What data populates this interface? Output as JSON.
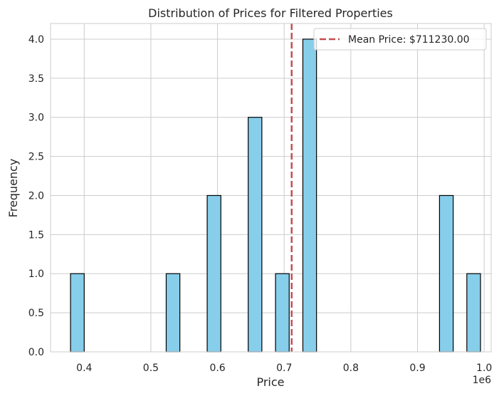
{
  "chart_data": {
    "type": "bar",
    "title": "Distribution of Prices for Filtered Properties",
    "xlabel": "Price",
    "ylabel": "Frequency",
    "x_offset_label": "1e6",
    "xlim": [
      0.3495,
      1.0105
    ],
    "ylim": [
      0,
      4.2
    ],
    "x_ticks": [
      0.4,
      0.5,
      0.6,
      0.7,
      0.8,
      0.9,
      1.0
    ],
    "x_tick_labels": [
      "0.4",
      "0.5",
      "0.6",
      "0.7",
      "0.8",
      "0.9",
      "1.0"
    ],
    "y_ticks": [
      0,
      0.5,
      1,
      1.5,
      2,
      2.5,
      3,
      3.5,
      4
    ],
    "y_tick_labels": [
      "0.0",
      "0.5",
      "1.0",
      "1.5",
      "2.0",
      "2.5",
      "3.0",
      "3.5",
      "4.0"
    ],
    "bin_width": 0.0205,
    "bins": [
      {
        "start": 0.3795,
        "count": 1
      },
      {
        "start": 0.523,
        "count": 1
      },
      {
        "start": 0.5845,
        "count": 2
      },
      {
        "start": 0.646,
        "count": 3
      },
      {
        "start": 0.687,
        "count": 1
      },
      {
        "start": 0.728,
        "count": 4
      },
      {
        "start": 0.933,
        "count": 2
      },
      {
        "start": 0.974,
        "count": 1
      }
    ],
    "mean_line": {
      "x": 0.71123,
      "label": "Mean Price: $711230.00"
    },
    "grid": true,
    "legend_position": "top-right",
    "colors": {
      "bar": "#87ceeb",
      "edge": "#000000",
      "mean": "#c44e52",
      "grid": "#cccccc",
      "spine": "#cccccc"
    }
  }
}
